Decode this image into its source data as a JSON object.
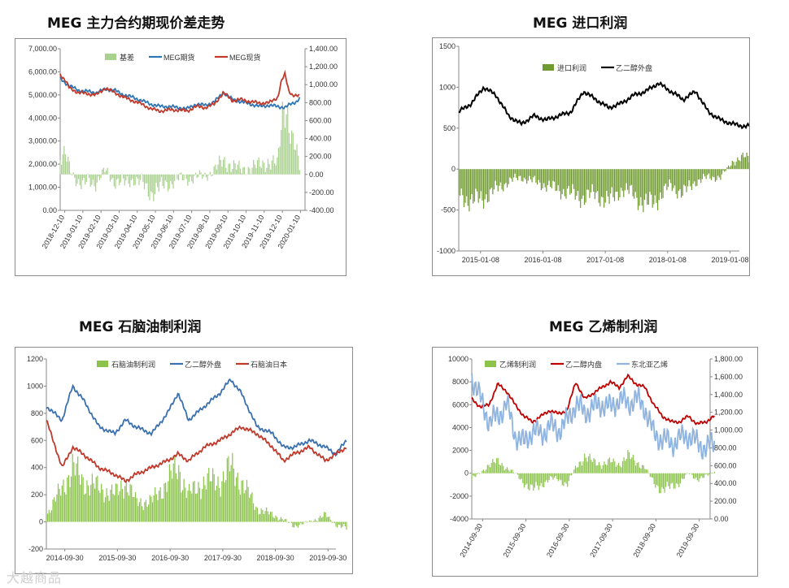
{
  "watermark": "大越商品",
  "chart_data": [
    {
      "id": "c1",
      "type": "line",
      "title": "MEG 主力合约期现价差走势",
      "x_ticks": [
        "2018-12-10",
        "2019-01-10",
        "2019-02-10",
        "2019-03-10",
        "2019-04-10",
        "2019-05-10",
        "2019-06-10",
        "2019-07-10",
        "2019-08-10",
        "2019-09-10",
        "2019-10-10",
        "2019-11-10",
        "2019-12-10",
        "2020-01-10"
      ],
      "ylim": [
        0,
        7000
      ],
      "y_ticks": [
        "0.00",
        "1,000.00",
        "2,000.00",
        "3,000.00",
        "4,000.00",
        "5,000.00",
        "6,000.00",
        "7,000.00"
      ],
      "y2lim": [
        -400,
        1400
      ],
      "y2_ticks": [
        "-400.00",
        "-200.00",
        "0.00",
        "200.00",
        "400.00",
        "600.00",
        "800.00",
        "1,000.00",
        "1,200.00",
        "1,400.00"
      ],
      "legend": [
        "基差",
        "MEG期货",
        "MEG现货"
      ],
      "colors": {
        "bar": "#a9d18e",
        "s1": "#2e75b6",
        "s2": "#c0392b"
      },
      "series": [
        {
          "name": "MEG期货",
          "x": [
            0,
            0.5,
            1,
            1.5,
            2,
            2.5,
            3,
            3.5,
            4,
            4.5,
            5,
            5.5,
            6,
            6.5,
            7,
            7.5,
            8,
            8.5,
            9,
            9.5,
            10,
            10.5,
            11,
            11.5,
            12,
            12.4,
            12.7,
            13,
            13.2
          ],
          "values": [
            5700,
            5400,
            5200,
            5150,
            5100,
            5250,
            5200,
            5000,
            4900,
            4750,
            4600,
            4500,
            4500,
            4450,
            4400,
            4600,
            4550,
            4700,
            5100,
            4800,
            4700,
            4600,
            4500,
            4550,
            4500,
            4450,
            4600,
            4700,
            4850
          ]
        },
        {
          "name": "MEG现货",
          "x": [
            0,
            0.3,
            0.5,
            1,
            1.5,
            2,
            2.5,
            3,
            3.5,
            4,
            4.5,
            5,
            5.5,
            6,
            6.5,
            7,
            7.5,
            8,
            8.5,
            9,
            9.5,
            10,
            10.5,
            11,
            11.5,
            12,
            12.2,
            12.4,
            12.6,
            12.8,
            13,
            13.2
          ],
          "values": [
            5900,
            5600,
            5300,
            5100,
            5050,
            5000,
            5300,
            5100,
            4900,
            4750,
            4600,
            4400,
            4300,
            4350,
            4350,
            4300,
            4500,
            4450,
            4600,
            5100,
            4750,
            4800,
            4700,
            4650,
            4650,
            4900,
            5600,
            5900,
            5200,
            5000,
            4950,
            4950
          ]
        },
        {
          "name": "基差",
          "x": [
            0,
            0.3,
            0.5,
            1,
            1.3,
            1.5,
            2,
            2.5,
            3,
            3.5,
            4,
            4.5,
            5,
            5.5,
            6,
            6.5,
            7,
            7.5,
            8,
            8.5,
            9,
            9.5,
            10,
            10.5,
            11,
            11.5,
            12,
            12.2,
            12.4,
            12.6,
            12.8,
            13,
            13.2
          ],
          "values": [
            150,
            200,
            100,
            -100,
            -150,
            -50,
            -100,
            50,
            -80,
            -100,
            -50,
            -100,
            -200,
            -150,
            -100,
            -50,
            -50,
            -30,
            -20,
            50,
            150,
            100,
            50,
            80,
            100,
            150,
            100,
            600,
            900,
            600,
            350,
            250,
            100
          ]
        }
      ]
    },
    {
      "id": "c2",
      "type": "line",
      "title": "MEG 进口利润",
      "x_ticks": [
        "2015-01-08",
        "2016-01-08",
        "2017-01-08",
        "2018-01-08",
        "2019-01-08"
      ],
      "ylim": [
        -1000,
        1500
      ],
      "y_ticks": [
        "-1000",
        "-500",
        "0",
        "500",
        "1000",
        "1500"
      ],
      "legend": [
        "进口利润",
        "乙二醇外盘"
      ],
      "colors": {
        "bar": "#6f9a2f",
        "s1": "#000000"
      },
      "series": [
        {
          "name": "乙二醇外盘",
          "x": [
            0,
            0.2,
            0.4,
            0.6,
            0.8,
            1,
            1.2,
            1.4,
            1.6,
            1.8,
            2,
            2.2,
            2.4,
            2.6,
            2.8,
            3,
            3.2,
            3.4,
            3.6,
            3.8,
            4,
            4.2,
            4.4,
            4.6,
            4.8,
            5,
            5.2,
            5.4,
            5.5
          ],
          "values": [
            700,
            800,
            1000,
            900,
            650,
            550,
            650,
            600,
            650,
            700,
            950,
            850,
            750,
            800,
            900,
            950,
            1050,
            950,
            850,
            950,
            700,
            600,
            550,
            520,
            550,
            600,
            550,
            600,
            600
          ]
        },
        {
          "name": "进口利润",
          "x": [
            0,
            0.2,
            0.4,
            0.6,
            0.8,
            1,
            1.2,
            1.4,
            1.6,
            1.8,
            2,
            2.2,
            2.4,
            2.6,
            2.8,
            3,
            3.2,
            3.4,
            3.6,
            3.8,
            4,
            4.2,
            4.4,
            4.6,
            4.8,
            5,
            5.2,
            5.4,
            5.5
          ],
          "values": [
            -300,
            -400,
            -350,
            -250,
            -150,
            -100,
            -150,
            -200,
            -250,
            -300,
            -350,
            -300,
            -400,
            -250,
            -300,
            -450,
            -350,
            -200,
            -300,
            -150,
            -100,
            -100,
            100,
            150,
            80,
            50,
            -50,
            -100,
            -500
          ]
        }
      ]
    },
    {
      "id": "c3",
      "type": "line",
      "title": "MEG 石脑油制利润",
      "x_ticks": [
        "2014-09-30",
        "2015-09-30",
        "2016-09-30",
        "2017-09-30",
        "2018-09-30",
        "2019-09-30"
      ],
      "ylim": [
        -200,
        1200
      ],
      "y_ticks": [
        "-200",
        "0",
        "200",
        "400",
        "600",
        "800",
        "1000",
        "1200"
      ],
      "legend": [
        "石脑油制利润",
        "乙二醇外盘",
        "石脑油日本"
      ],
      "colors": {
        "bar": "#8bc34a",
        "s1": "#3a6fb0",
        "s2": "#c0392b"
      },
      "series": [
        {
          "name": "乙二醇外盘",
          "x": [
            0,
            0.3,
            0.5,
            0.7,
            1,
            1.3,
            1.5,
            1.7,
            2,
            2.3,
            2.5,
            2.7,
            3,
            3.3,
            3.5,
            3.7,
            4,
            4.3,
            4.5,
            4.7,
            5,
            5.3,
            5.5,
            5.7
          ],
          "values": [
            850,
            750,
            1000,
            900,
            700,
            650,
            750,
            700,
            650,
            800,
            950,
            750,
            850,
            950,
            1050,
            950,
            700,
            650,
            550,
            550,
            600,
            550,
            500,
            600
          ]
        },
        {
          "name": "石脑油日本",
          "x": [
            0,
            0.3,
            0.5,
            0.7,
            1,
            1.3,
            1.5,
            1.7,
            2,
            2.3,
            2.5,
            2.7,
            3,
            3.3,
            3.5,
            3.7,
            4,
            4.3,
            4.5,
            4.7,
            5,
            5.3,
            5.5,
            5.7
          ],
          "values": [
            750,
            400,
            550,
            500,
            400,
            350,
            300,
            350,
            400,
            450,
            500,
            450,
            550,
            600,
            650,
            700,
            650,
            550,
            450,
            500,
            550,
            450,
            500,
            550
          ]
        },
        {
          "name": "石脑油制利润",
          "x": [
            0,
            0.3,
            0.5,
            0.7,
            1,
            1.3,
            1.5,
            1.7,
            2,
            2.3,
            2.5,
            2.7,
            3,
            3.3,
            3.5,
            3.7,
            4,
            4.3,
            4.5,
            4.7,
            5,
            5.3,
            5.5,
            5.7
          ],
          "values": [
            50,
            250,
            400,
            300,
            250,
            200,
            300,
            150,
            150,
            300,
            400,
            200,
            300,
            300,
            400,
            300,
            100,
            50,
            20,
            -30,
            0,
            50,
            -20,
            -50
          ]
        }
      ]
    },
    {
      "id": "c4",
      "type": "line",
      "title": "MEG 乙烯制利润",
      "x_ticks": [
        "2014-09-30",
        "2015-09-30",
        "2016-09-30",
        "2017-09-30",
        "2018-09-30",
        "2019-09-30"
      ],
      "ylim": [
        -4000,
        10000
      ],
      "y_ticks": [
        "-4000",
        "-2000",
        "0",
        "2000",
        "4000",
        "6000",
        "8000",
        "10000"
      ],
      "y2lim": [
        0,
        1800
      ],
      "y2_ticks": [
        "0.00",
        "200.00",
        "400.00",
        "600.00",
        "800.00",
        "1,000.00",
        "1,200.00",
        "1,400.00",
        "1,600.00",
        "1,800.00"
      ],
      "legend": [
        "乙烯制利润",
        "乙二醇内盘",
        "东北亚乙烯"
      ],
      "colors": {
        "bar": "#8bc34a",
        "s1": "#c00000",
        "s2": "#8fb4e0"
      },
      "series": [
        {
          "name": "乙二醇内盘",
          "x": [
            0,
            0.2,
            0.4,
            0.6,
            0.8,
            1,
            1.2,
            1.4,
            1.6,
            1.8,
            2,
            2.2,
            2.4,
            2.6,
            2.8,
            3,
            3.2,
            3.4,
            3.6,
            3.8,
            4,
            4.2,
            4.4,
            4.6,
            4.8,
            5,
            5.2,
            5.4,
            5.6
          ],
          "values": [
            6500,
            5800,
            6000,
            7800,
            7200,
            6000,
            5000,
            4500,
            5000,
            5500,
            5200,
            5500,
            8000,
            6500,
            7000,
            7500,
            8000,
            7500,
            8500,
            7800,
            7500,
            6000,
            5000,
            4500,
            4500,
            5000,
            4300,
            4500,
            5000
          ]
        },
        {
          "name": "东北亚乙烯",
          "x": [
            0,
            0.2,
            0.4,
            0.6,
            0.8,
            1,
            1.2,
            1.4,
            1.6,
            1.8,
            2,
            2.2,
            2.4,
            2.6,
            2.8,
            3,
            3.2,
            3.4,
            3.6,
            3.8,
            4,
            4.2,
            4.4,
            4.6,
            4.8,
            5,
            5.2,
            5.4,
            5.6
          ],
          "values": [
            1600,
            1350,
            1100,
            1150,
            1300,
            950,
            850,
            1000,
            950,
            1050,
            1000,
            1100,
            1300,
            1200,
            1250,
            1300,
            1250,
            1350,
            1300,
            1350,
            1250,
            950,
            900,
            850,
            900,
            950,
            850,
            800,
            850
          ]
        },
        {
          "name": "乙烯制利润",
          "x": [
            0,
            0.2,
            0.4,
            0.6,
            0.8,
            1,
            1.2,
            1.4,
            1.6,
            1.8,
            2,
            2.2,
            2.4,
            2.6,
            2.8,
            3,
            3.2,
            3.4,
            3.6,
            3.8,
            4,
            4.2,
            4.4,
            4.6,
            4.8,
            5,
            5.2,
            5.4,
            5.6
          ],
          "values": [
            -500,
            0,
            800,
            1000,
            500,
            0,
            -800,
            -1500,
            -1000,
            -500,
            -500,
            -1000,
            500,
            1500,
            1000,
            800,
            1000,
            800,
            1500,
            1000,
            500,
            -800,
            -1500,
            -1200,
            -800,
            0,
            -500,
            -300,
            200
          ]
        }
      ]
    }
  ]
}
